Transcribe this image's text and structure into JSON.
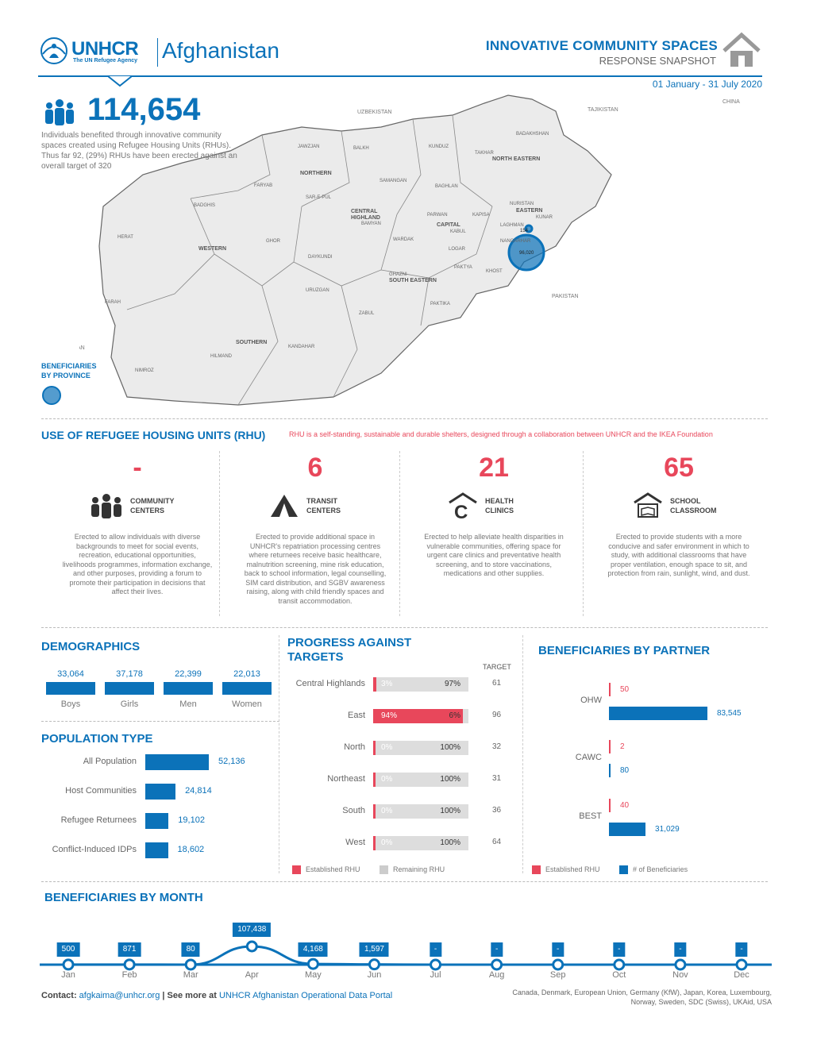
{
  "header": {
    "org": "UNHCR",
    "org_sub": "The UN Refugee Agency",
    "country": "Afghanistan",
    "title": "INNOVATIVE COMMUNITY SPACES",
    "subtitle": "RESPONSE SNAPSHOT",
    "date_range": "01 January - 31 July 2020"
  },
  "summary": {
    "total": "114,654",
    "description": "Individuals benefited through innovative community spaces created using Refugee Housing Units (RHUs). Thus far 92, (29%) RHUs have been erected against an overall target of 320"
  },
  "map": {
    "legend": [
      "BENEFICIARIES",
      "BY PROVINCE"
    ],
    "neighbors": [
      "UZBEKISTAN",
      "TAJIKISTAN",
      "CHINA",
      "PAKISTAN",
      "IRAN"
    ],
    "regions": [
      "NORTHERN",
      "NORTH EASTERN",
      "CENTRAL HIGHLAND",
      "CAPITAL",
      "EASTERN",
      "WESTERN",
      "SOUTH EASTERN",
      "SOUTHERN"
    ],
    "provinces": [
      "JAWZJAN",
      "BALKH",
      "KUNDUZ",
      "TAKHAR",
      "BADAKHSHAN",
      "FARYAB",
      "SAMANGAN",
      "SAR-E-PUL",
      "BAGHLAN",
      "BADGHIS",
      "NURISTAN",
      "KUNAR",
      "PARWAN",
      "KAPISA",
      "LAGHMAN",
      "BAMYAN",
      "HERAT",
      "GHOR",
      "WARDAK",
      "KABUL",
      "NANGARHAR",
      "DAYKUNDI",
      "LOGAR",
      "PAKTYA",
      "KHOST",
      "GHAZNI",
      "URUZGAN",
      "FARAH",
      "PAKTIKA",
      "ZABUL",
      "KANDAHAR",
      "HILMAND",
      "NIMROZ"
    ],
    "circle_labels": [
      "154",
      "96,020"
    ]
  },
  "rhu": {
    "title": "USE OF REFUGEE HOUSING UNITS (RHU)",
    "note": "RHU is a self-standing, sustainable and durable shelters, designed through a collaboration between UNHCR and the IKEA Foundation",
    "items": [
      {
        "value": "-",
        "label1": "COMMUNITY",
        "label2": "CENTERS",
        "icon": "people-icon",
        "desc": "Erected to allow individuals with diverse backgrounds to meet for social events, recreation, educational opportunities, livelihoods programmes, information exchange, and other purposes, providing a forum to promote their participation in decisions that affect their lives."
      },
      {
        "value": "6",
        "label1": "TRANSIT",
        "label2": "CENTERS",
        "icon": "tent-icon",
        "desc": "Erected to provide additional space in UNHCR's repatriation processing centres where returnees receive basic healthcare, malnutrition screening, mine risk education, back to school information, legal counselling, SIM card distribution, and SGBV awareness raising, along with child friendly spaces and transit accommodation."
      },
      {
        "value": "21",
        "label1": "HEALTH CLINICS",
        "label2": "",
        "icon": "clinic-icon",
        "desc": "Erected to help alleviate health disparities in vulnerable communities, offering space for urgent care clinics and preventative health screening, and to store vaccinations, medications and other supplies."
      },
      {
        "value": "65",
        "label1": "SCHOOL",
        "label2": "CLASSROOM",
        "icon": "school-icon",
        "desc": "Erected to provide students with a more conducive and safer environment in which to study, with additional classrooms that have proper ventilation, enough space to sit, and protection from rain, sunlight, wind, and dust."
      }
    ]
  },
  "demographics": {
    "title": "DEMOGRAPHICS",
    "items": [
      {
        "label": "Boys",
        "value": "33,064"
      },
      {
        "label": "Girls",
        "value": "37,178"
      },
      {
        "label": "Men",
        "value": "22,399"
      },
      {
        "label": "Women",
        "value": "22,013"
      }
    ]
  },
  "population": {
    "title": "POPULATION TYPE",
    "items": [
      {
        "label": "All Population",
        "value": "52,136",
        "num": 52136
      },
      {
        "label": "Host Communities",
        "value": "24,814",
        "num": 24814
      },
      {
        "label": "Refugee Returnees",
        "value": "19,102",
        "num": 19102
      },
      {
        "label": "Conflict-Induced IDPs",
        "value": "18,602",
        "num": 18602
      }
    ]
  },
  "progress": {
    "title1": "PROGRESS AGAINST",
    "title2": "TARGETS",
    "target_header": "TARGET",
    "rows": [
      {
        "label": "Central Highlands",
        "est": "3%",
        "rem": "97%",
        "frac": 0.03,
        "target": "61"
      },
      {
        "label": "East",
        "est": "94%",
        "rem": "6%",
        "frac": 0.94,
        "target": "96"
      },
      {
        "label": "North",
        "est": "0%",
        "rem": "100%",
        "frac": 0,
        "target": "32"
      },
      {
        "label": "Northeast",
        "est": "0%",
        "rem": "100%",
        "frac": 0,
        "target": "31"
      },
      {
        "label": "South",
        "est": "0%",
        "rem": "100%",
        "frac": 0,
        "target": "36"
      },
      {
        "label": "West",
        "est": "0%",
        "rem": "100%",
        "frac": 0,
        "target": "64"
      }
    ],
    "legend": [
      "Established RHU",
      "Remaining RHU"
    ]
  },
  "partners": {
    "title": "BENEFICIARIES BY PARTNER",
    "items": [
      {
        "label": "OHW",
        "rhu": "50",
        "beneficiaries": "83,545",
        "num": 83545
      },
      {
        "label": "CAWC",
        "rhu": "2",
        "beneficiaries": "80",
        "num": 80
      },
      {
        "label": "BEST",
        "rhu": "40",
        "beneficiaries": "31,029",
        "num": 31029
      }
    ],
    "legend": [
      "Established RHU",
      "# of Beneficiaries"
    ]
  },
  "monthly": {
    "title": "BENEFICIARIES BY MONTH",
    "months": [
      {
        "label": "Jan",
        "value": "500",
        "num": 500
      },
      {
        "label": "Feb",
        "value": "871",
        "num": 871
      },
      {
        "label": "Mar",
        "value": "80",
        "num": 80
      },
      {
        "label": "Apr",
        "value": "107,438",
        "num": 107438
      },
      {
        "label": "May",
        "value": "4,168",
        "num": 4168
      },
      {
        "label": "Jun",
        "value": "1,597",
        "num": 1597
      },
      {
        "label": "Jul",
        "value": "-",
        "num": 0
      },
      {
        "label": "Aug",
        "value": "-",
        "num": 0
      },
      {
        "label": "Sep",
        "value": "-",
        "num": 0
      },
      {
        "label": "Oct",
        "value": "-",
        "num": 0
      },
      {
        "label": "Nov",
        "value": "-",
        "num": 0
      },
      {
        "label": "Dec",
        "value": "-",
        "num": 0
      }
    ]
  },
  "footer": {
    "contact_label": "Contact:",
    "contact_email": "afgkaima@unhcr.org",
    "see_more": "| See more at",
    "portal": "UNHCR Afghanistan Operational Data Portal",
    "donors": "Canada, Denmark, European Union, Germany (KfW), Japan, Korea, Luxembourg, Norway, Sweden, SDC (Swiss), UKAid, USA"
  }
}
